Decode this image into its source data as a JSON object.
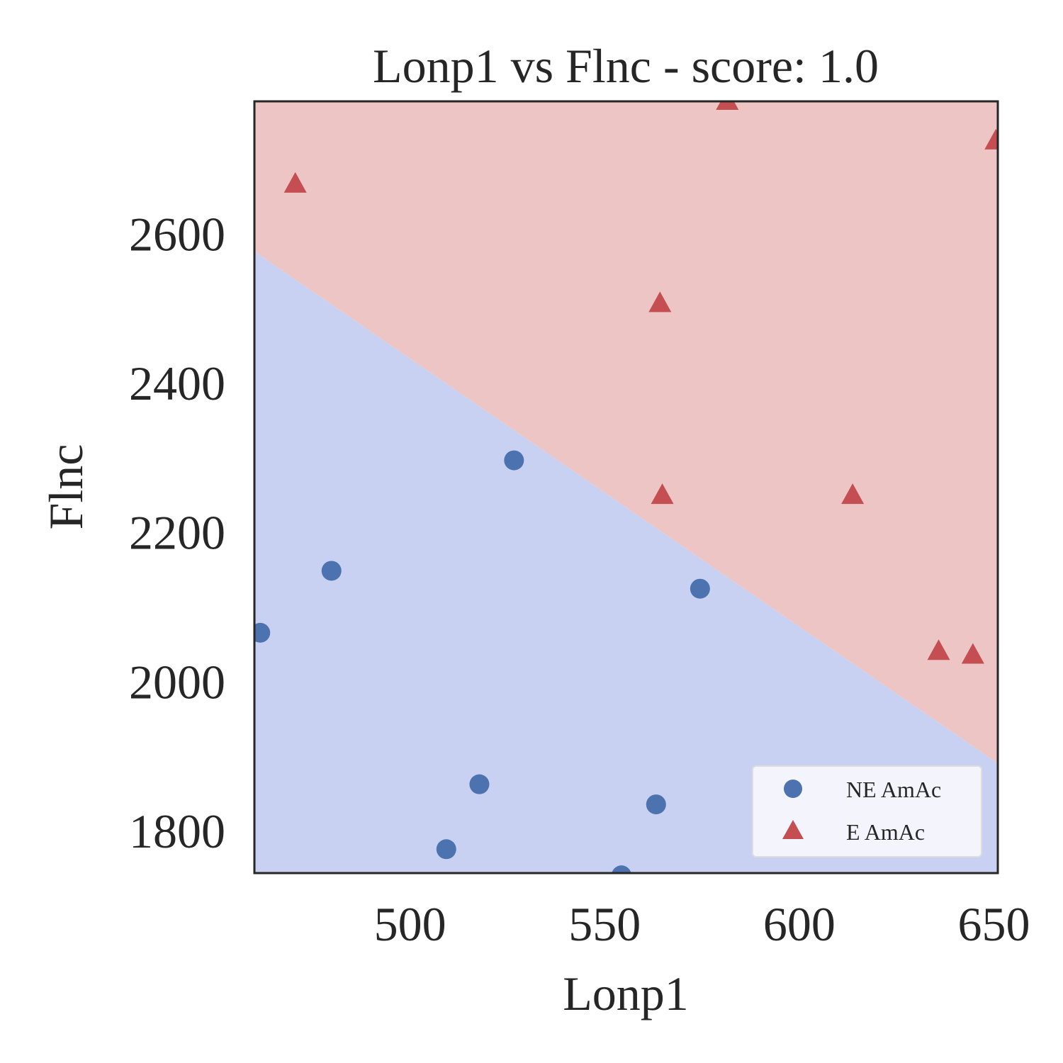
{
  "chart_data": {
    "type": "scatter",
    "title": "Lonp1 vs Flnc - score: 1.0",
    "xlabel": "Lonp1",
    "ylabel": "Flnc",
    "xlim": [
      460,
      651
    ],
    "ylim": [
      1743,
      2777
    ],
    "xticks": [
      500,
      550,
      600,
      650
    ],
    "yticks": [
      1800,
      2000,
      2200,
      2400,
      2600
    ],
    "grid": false,
    "legend_position": "lower-right",
    "decision_boundary": {
      "points": [
        [
          460,
          2576
        ],
        [
          651,
          1890
        ]
      ],
      "above_color": "#edc5c4",
      "below_color": "#c8d1f1",
      "above_class": "E AmAc",
      "below_class": "NE AmAc"
    },
    "series": [
      {
        "name": "NE AmAc",
        "marker": "circle",
        "color": "#4c72b0",
        "points": [
          [
            461.5,
            2065
          ],
          [
            479.8,
            2148
          ],
          [
            509.3,
            1775
          ],
          [
            517.8,
            1862
          ],
          [
            526.7,
            2296
          ],
          [
            554.3,
            1740
          ],
          [
            563.2,
            1835
          ],
          [
            574.5,
            2124
          ]
        ]
      },
      {
        "name": "E AmAc",
        "marker": "triangle",
        "color": "#c44e52",
        "points": [
          [
            470.5,
            2666
          ],
          [
            564.2,
            2506
          ],
          [
            564.8,
            2249
          ],
          [
            581.5,
            2777
          ],
          [
            613.7,
            2249
          ],
          [
            635.8,
            2040
          ],
          [
            644.6,
            2035
          ],
          [
            650.5,
            2724
          ]
        ]
      }
    ]
  }
}
